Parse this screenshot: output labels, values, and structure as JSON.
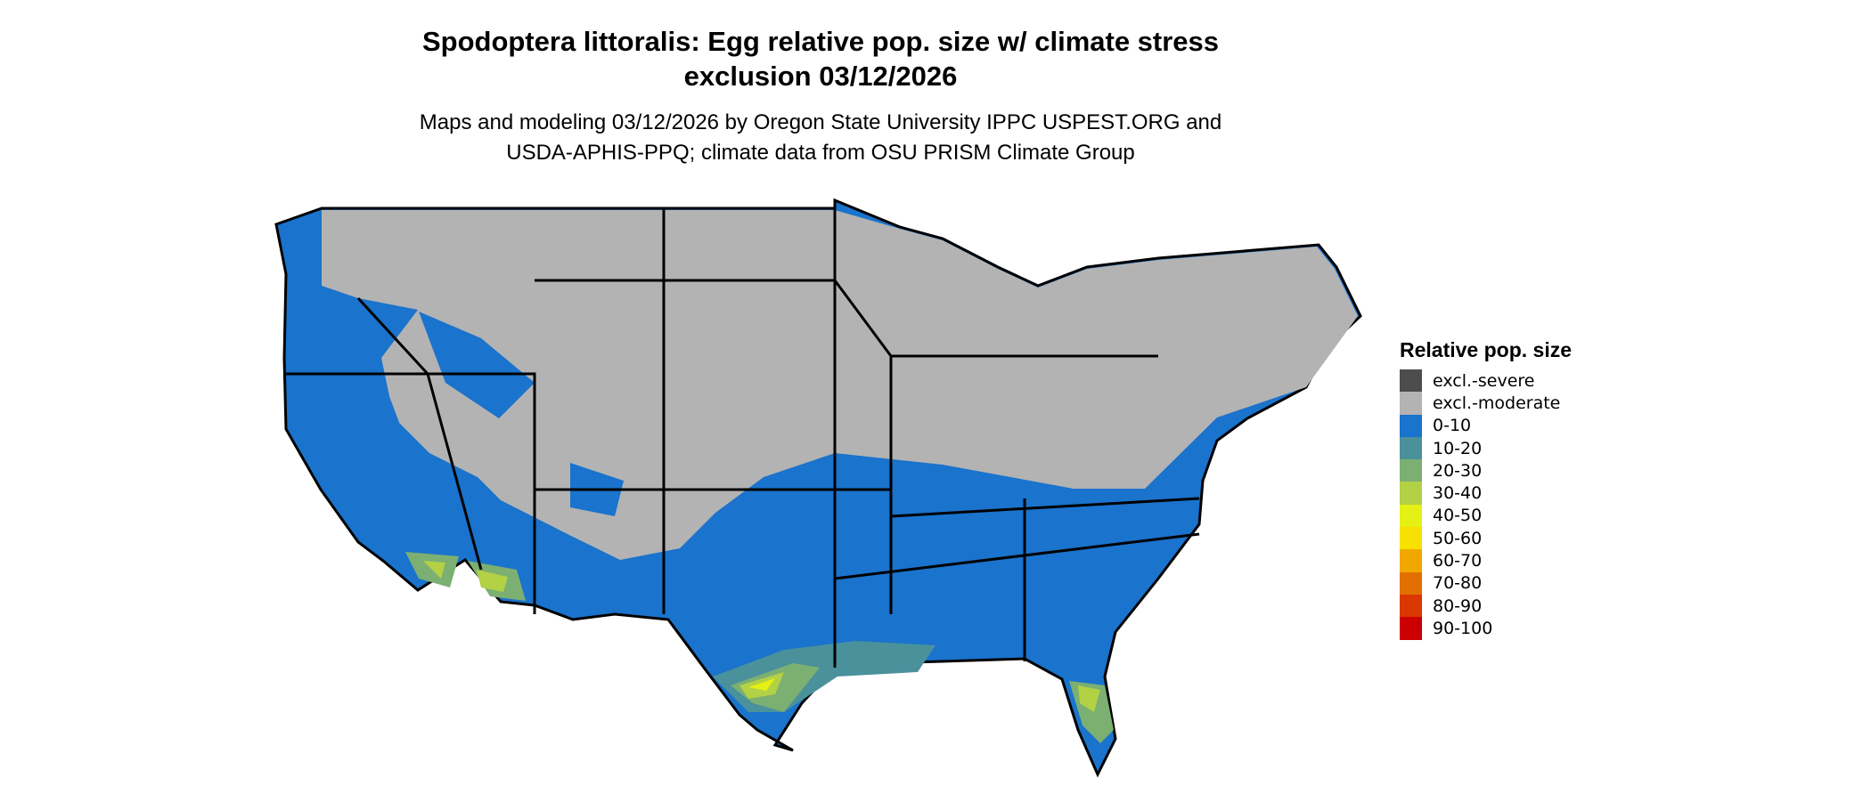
{
  "title": {
    "line1": "Spodoptera littoralis: Egg relative pop. size w/ climate stress",
    "line2": "exclusion 03/12/2026"
  },
  "subtitle": {
    "line1": "Maps and modeling 03/12/2026 by Oregon State University IPPC USPEST.ORG and",
    "line2": "USDA-APHIS-PPQ; climate data from OSU PRISM Climate Group"
  },
  "legend": {
    "title": "Relative pop. size",
    "items": [
      {
        "label": "excl.-severe",
        "color": "#4d4d4d"
      },
      {
        "label": "excl.-moderate",
        "color": "#b3b3b3"
      },
      {
        "label": "0-10",
        "color": "#1a73cc"
      },
      {
        "label": "10-20",
        "color": "#4a919c"
      },
      {
        "label": "20-30",
        "color": "#7caf72"
      },
      {
        "label": "30-40",
        "color": "#b2d145"
      },
      {
        "label": "40-50",
        "color": "#e5f014"
      },
      {
        "label": "50-60",
        "color": "#f8e100"
      },
      {
        "label": "60-70",
        "color": "#f0a800"
      },
      {
        "label": "70-80",
        "color": "#e27000"
      },
      {
        "label": "80-90",
        "color": "#da3800"
      },
      {
        "label": "90-100",
        "color": "#cc0000"
      }
    ]
  },
  "map": {
    "region": "Contiguous United States",
    "state_border_color": "#000000"
  }
}
